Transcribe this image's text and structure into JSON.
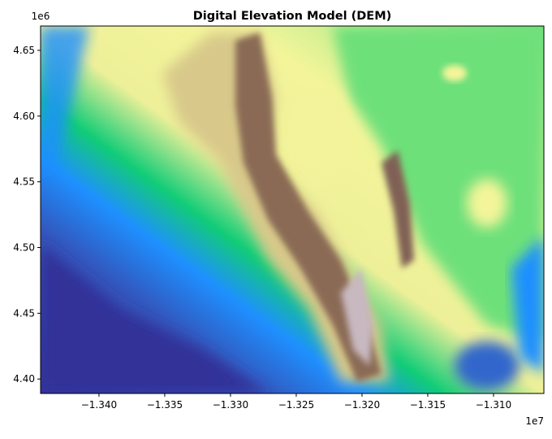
{
  "chart_data": {
    "type": "image",
    "title": "Digital Elevation Model (DEM)",
    "x_offset_label": "1e7",
    "y_offset_label": "1e6",
    "xlim": [
      -1.34444,
      -1.30617
    ],
    "ylim": [
      4.389,
      4.6685
    ],
    "xticks": [
      {
        "value": -1.34,
        "label": "−1.340"
      },
      {
        "value": -1.335,
        "label": "−1.335"
      },
      {
        "value": -1.33,
        "label": "−1.330"
      },
      {
        "value": -1.325,
        "label": "−1.325"
      },
      {
        "value": -1.32,
        "label": "−1.320"
      },
      {
        "value": -1.315,
        "label": "−1.315"
      },
      {
        "value": -1.31,
        "label": "−1.310"
      }
    ],
    "yticks": [
      {
        "value": 4.4,
        "label": "4.40"
      },
      4.45,
      {
        "value": 4.5,
        "label": "4.50"
      },
      4.55,
      {
        "value": 4.6,
        "label": "4.60"
      },
      4.65
    ]
  }
}
